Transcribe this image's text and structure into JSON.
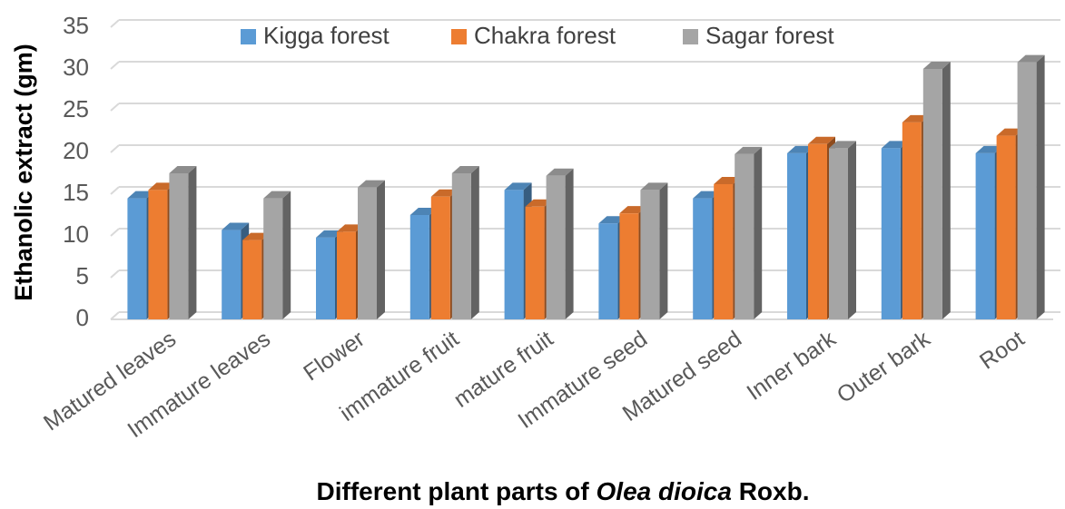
{
  "chart_data": {
    "type": "bar3d",
    "ylabel": "Ethanolic extract (gm)",
    "xlabel_parts": [
      "Different plant parts of ",
      "Olea dioica",
      " Roxb."
    ],
    "categories": [
      "Matured leaves",
      "Immature leaves",
      "Flower",
      "immature fruit",
      "mature fruit",
      "Immature seed",
      "Matured seed",
      "Inner bark",
      "Outer bark",
      "Root"
    ],
    "series": [
      {
        "name": "Kigga forest",
        "color": "#5b9bd5",
        "values": [
          14.5,
          10.7,
          9.8,
          12.5,
          15.5,
          11.5,
          14.5,
          19.9,
          20.5,
          19.9
        ]
      },
      {
        "name": "Chakra forest",
        "color": "#ed7d31",
        "values": [
          15.5,
          9.5,
          10.5,
          14.7,
          13.5,
          12.7,
          16.2,
          21,
          23.6,
          22
        ]
      },
      {
        "name": "Sagar forest",
        "color": "#a5a5a5",
        "values": [
          17.5,
          14.5,
          15.8,
          17.5,
          17.2,
          15.5,
          19.8,
          20.5,
          30,
          30.8
        ]
      }
    ],
    "ylim": [
      0,
      35
    ],
    "yticks": [
      0,
      5,
      10,
      15,
      20,
      25,
      30,
      35
    ],
    "grid": true,
    "legend": "top"
  }
}
